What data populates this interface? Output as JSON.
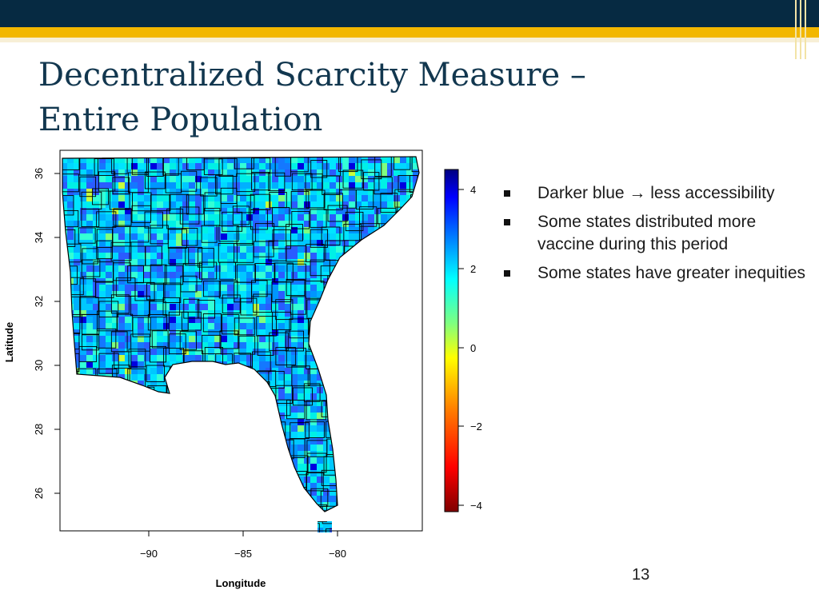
{
  "slide": {
    "title_line1": "Decentralized Scarcity Measure –",
    "title_line2": "Entire Population",
    "page_number": "13",
    "colors": {
      "header_dark": "#062a42",
      "header_gold": "#f2b700",
      "title": "#12374f"
    }
  },
  "bullets": [
    {
      "pre": "Darker blue ",
      "arrow": "→",
      "post": " less accessibility"
    },
    {
      "text": "Some states distributed more vaccine during this period"
    },
    {
      "text": "Some states have greater inequities"
    }
  ],
  "map": {
    "region": "Southeastern United States counties",
    "xlabel": "Longitude",
    "ylabel": "Latitude",
    "x_ticks": [
      "−90",
      "−85",
      "−80"
    ],
    "y_ticks": [
      "26",
      "28",
      "30",
      "32",
      "34",
      "36"
    ],
    "colorbar_ticks": [
      "4",
      "2",
      "0",
      "−2",
      "−4"
    ],
    "colorbar_range": [
      -4.4,
      4.4
    ],
    "palette": [
      "#7f0000",
      "#ff0000",
      "#ff7f00",
      "#ffff00",
      "#7fff7f",
      "#00ffff",
      "#007fff",
      "#0000ff",
      "#00007f"
    ]
  }
}
